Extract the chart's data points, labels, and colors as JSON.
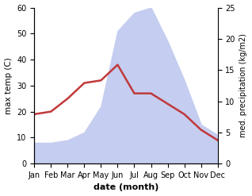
{
  "months": [
    "Jan",
    "Feb",
    "Mar",
    "Apr",
    "May",
    "Jun",
    "Jul",
    "Aug",
    "Sep",
    "Oct",
    "Nov",
    "Dec"
  ],
  "month_indices": [
    0,
    1,
    2,
    3,
    4,
    5,
    6,
    7,
    8,
    9,
    10,
    11
  ],
  "temp_max": [
    19,
    20,
    25,
    31,
    32,
    38,
    27,
    27,
    23,
    19,
    13,
    9
  ],
  "precipitation": [
    8,
    8,
    9,
    12,
    22,
    51,
    58,
    60,
    47,
    32,
    15,
    11
  ],
  "temp_color": "#c0393b",
  "precip_fill_color": "#c5cdf0",
  "left_ylim": [
    0,
    60
  ],
  "right_ylim": [
    0,
    25
  ],
  "left_yticks": [
    0,
    10,
    20,
    30,
    40,
    50,
    60
  ],
  "right_yticks": [
    0,
    5,
    10,
    15,
    20,
    25
  ],
  "xlabel": "date (month)",
  "ylabel_left": "max temp (C)",
  "ylabel_right": "med. precipitation (kg/m2)",
  "background_color": "#ffffff",
  "figsize": [
    3.18,
    2.47
  ],
  "dpi": 100
}
